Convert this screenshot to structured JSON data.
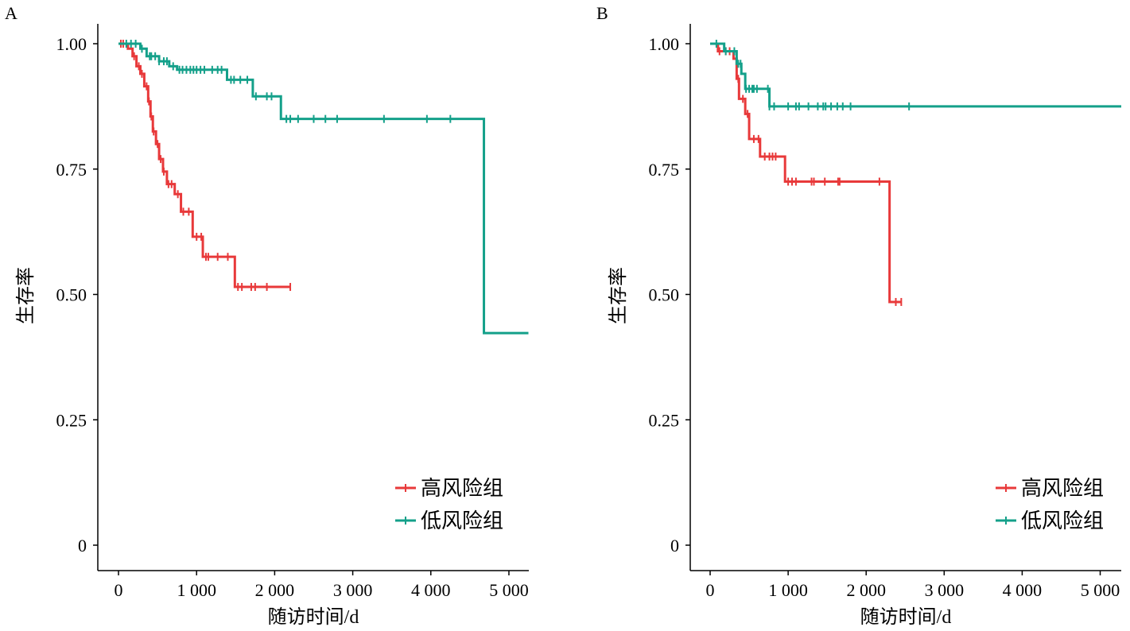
{
  "chart_data": [
    {
      "type": "line",
      "panel_label": "A",
      "xlabel": "随访时间/d",
      "ylabel": "生存率",
      "xlim": [
        -265,
        5255
      ],
      "ylim": [
        0,
        1
      ],
      "xticks": [
        0,
        1000,
        2000,
        3000,
        4000,
        5000
      ],
      "xtick_labels": [
        "0",
        "1 000",
        "2 000",
        "3 000",
        "4 000",
        "5 000"
      ],
      "yticks": [
        0,
        0.25,
        0.5,
        0.75,
        1.0
      ],
      "ytick_labels": [
        "0",
        "0.25",
        "0.50",
        "0.75",
        "1.00"
      ],
      "legend_position": "bottom-right",
      "series": [
        {
          "name": "高风险组",
          "color": "#e8393a",
          "steps": [
            [
              0,
              1.0
            ],
            [
              120,
              0.99
            ],
            [
              180,
              0.975
            ],
            [
              230,
              0.955
            ],
            [
              280,
              0.94
            ],
            [
              330,
              0.915
            ],
            [
              380,
              0.885
            ],
            [
              410,
              0.855
            ],
            [
              440,
              0.825
            ],
            [
              480,
              0.8
            ],
            [
              520,
              0.77
            ],
            [
              570,
              0.745
            ],
            [
              620,
              0.72
            ],
            [
              720,
              0.7
            ],
            [
              800,
              0.665
            ],
            [
              950,
              0.615
            ],
            [
              1080,
              0.575
            ],
            [
              1490,
              0.515
            ]
          ],
          "end": 2200,
          "censored": [
            30,
            60,
            200,
            260,
            300,
            360,
            390,
            420,
            450,
            500,
            540,
            580,
            640,
            680,
            760,
            830,
            900,
            1000,
            1060,
            1120,
            1150,
            1270,
            1400,
            1530,
            1580,
            1700,
            1750,
            1900,
            2200
          ]
        },
        {
          "name": "低风险组",
          "color": "#14a08a",
          "steps": [
            [
              0,
              1.0
            ],
            [
              280,
              0.99
            ],
            [
              360,
              0.975
            ],
            [
              520,
              0.965
            ],
            [
              650,
              0.955
            ],
            [
              750,
              0.948
            ],
            [
              1390,
              0.928
            ],
            [
              1720,
              0.895
            ],
            [
              2080,
              0.85
            ],
            [
              4680,
              0.423
            ]
          ],
          "end": 5250,
          "censored": [
            100,
            160,
            220,
            300,
            400,
            420,
            470,
            520,
            580,
            620,
            700,
            780,
            820,
            870,
            920,
            960,
            1000,
            1050,
            1100,
            1200,
            1270,
            1320,
            1440,
            1480,
            1560,
            1650,
            1760,
            1900,
            1960,
            2150,
            2200,
            2300,
            2500,
            2650,
            2800,
            3400,
            3950,
            4250
          ]
        }
      ]
    },
    {
      "type": "line",
      "panel_label": "B",
      "xlabel": "随访时间/d",
      "ylabel": "生存率",
      "xlim": [
        -255,
        5270
      ],
      "ylim": [
        0,
        1
      ],
      "xticks": [
        0,
        1000,
        2000,
        3000,
        4000,
        5000
      ],
      "xtick_labels": [
        "0",
        "1 000",
        "2 000",
        "3 000",
        "4 000",
        "5 000"
      ],
      "yticks": [
        0,
        0.25,
        0.5,
        0.75,
        1.0
      ],
      "ytick_labels": [
        "0",
        "0.25",
        "0.50",
        "0.75",
        "1.00"
      ],
      "legend_position": "bottom-right",
      "series": [
        {
          "name": "高风险组",
          "color": "#e8393a",
          "steps": [
            [
              0,
              1.0
            ],
            [
              100,
              0.985
            ],
            [
              300,
              0.97
            ],
            [
              340,
              0.93
            ],
            [
              370,
              0.89
            ],
            [
              450,
              0.86
            ],
            [
              500,
              0.81
            ],
            [
              640,
              0.775
            ],
            [
              960,
              0.725
            ],
            [
              2300,
              0.485
            ]
          ],
          "end": 2450,
          "censored": [
            120,
            200,
            250,
            360,
            420,
            480,
            560,
            620,
            700,
            760,
            800,
            840,
            1000,
            1050,
            1100,
            1300,
            1330,
            1470,
            1640,
            1660,
            2170,
            2380,
            2450
          ]
        },
        {
          "name": "低风险组",
          "color": "#14a08a",
          "steps": [
            [
              0,
              1.0
            ],
            [
              180,
              0.985
            ],
            [
              340,
              0.96
            ],
            [
              400,
              0.94
            ],
            [
              450,
              0.91
            ],
            [
              760,
              0.875
            ]
          ],
          "end": 5270,
          "censored": [
            80,
            200,
            310,
            360,
            390,
            460,
            500,
            540,
            560,
            600,
            740,
            760,
            820,
            1000,
            1100,
            1140,
            1260,
            1380,
            1450,
            1480,
            1550,
            1630,
            1700,
            1800,
            2550
          ]
        }
      ]
    }
  ]
}
